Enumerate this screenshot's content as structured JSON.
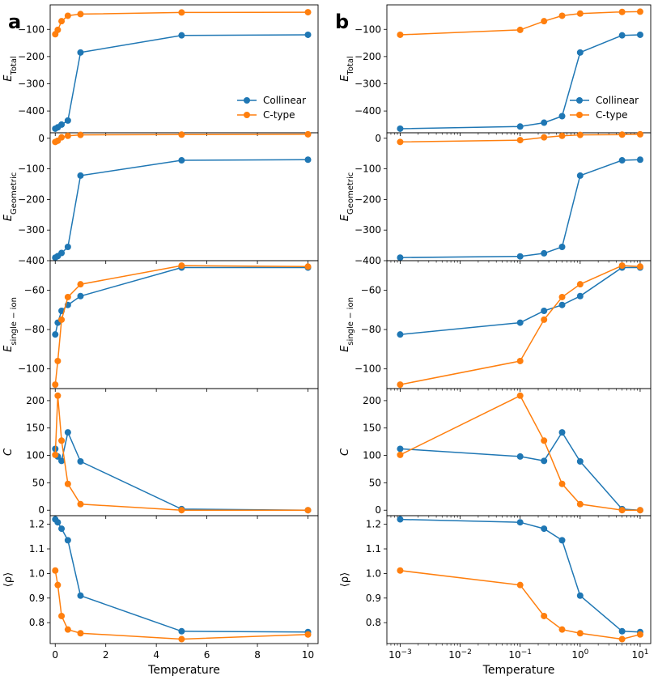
{
  "chart_data": [
    {
      "type": "line",
      "panel_label": "a",
      "xscale": "linear",
      "xlabel": "Temperature",
      "xticks": [
        0,
        2,
        4,
        6,
        8,
        10
      ],
      "xtick_labels": [
        "0",
        "2",
        "4",
        "6",
        "8",
        "10"
      ],
      "xlim": [
        -0.2,
        10.4
      ],
      "x": [
        0.001,
        0.1,
        0.25,
        0.5,
        1,
        5,
        10
      ],
      "series_names": [
        "Collinear",
        "C-type"
      ],
      "colors": [
        "#1f77b4",
        "#ff7f0e"
      ],
      "legend_position": "lower-right of first row",
      "rows": [
        {
          "ylabel": "E",
          "ylabel_sub": "Total",
          "ylim": [
            -480,
            -10
          ],
          "yticks": [
            -400,
            -300,
            -200,
            -100
          ],
          "ytick_labels": [
            "−400",
            "−300",
            "−200",
            "−100"
          ],
          "series": [
            {
              "name": "Collinear",
              "values": [
                -465,
                -460,
                -450,
                -435,
                -185,
                -122,
                -120
              ]
            },
            {
              "name": "C-type",
              "values": [
                -118,
                -102,
                -70,
                -50,
                -44,
                -38,
                -37
              ]
            }
          ]
        },
        {
          "ylabel": "E",
          "ylabel_sub": "Geometric",
          "ylim": [
            -400,
            18
          ],
          "yticks": [
            -400,
            -300,
            -200,
            -100,
            0
          ],
          "ytick_labels": [
            "−400",
            "−300",
            "−200",
            "−100",
            "0"
          ],
          "series": [
            {
              "name": "Collinear",
              "values": [
                -390,
                -385,
                -375,
                -355,
                -122,
                -72,
                -70
              ]
            },
            {
              "name": "C-type",
              "values": [
                -12,
                -8,
                3,
                8,
                11,
                12,
                13
              ]
            }
          ]
        },
        {
          "ylabel": "E",
          "ylabel_sub": "single − ion",
          "ylim": [
            -110,
            -45
          ],
          "yticks": [
            -100,
            -80,
            -60
          ],
          "ytick_labels": [
            "−100",
            "−80",
            "−60"
          ],
          "series": [
            {
              "name": "Collinear",
              "values": [
                -82.5,
                -76.5,
                -70.5,
                -67.5,
                -63,
                -48.5,
                -48.5
              ]
            },
            {
              "name": "C-type",
              "values": [
                -108,
                -96,
                -75,
                -63.5,
                -57,
                -47.5,
                -48
              ]
            }
          ]
        },
        {
          "ylabel": "C",
          "ylabel_sub": "",
          "ylim": [
            -10,
            222
          ],
          "yticks": [
            0,
            50,
            100,
            150,
            200
          ],
          "ytick_labels": [
            "0",
            "50",
            "100",
            "150",
            "200"
          ],
          "series": [
            {
              "name": "Collinear",
              "values": [
                112,
                98,
                90,
                142,
                89,
                2,
                0
              ]
            },
            {
              "name": "C-type",
              "values": [
                101,
                209,
                127,
                48,
                11,
                0,
                0
              ]
            }
          ]
        },
        {
          "ylabel": "⟨ρ⟩",
          "ylabel_sub": "",
          "ylim": [
            0.715,
            1.235
          ],
          "yticks": [
            0.8,
            0.9,
            1.0,
            1.1,
            1.2
          ],
          "ytick_labels": [
            "0.8",
            "0.9",
            "1.0",
            "1.1",
            "1.2"
          ],
          "series": [
            {
              "name": "Collinear",
              "values": [
                1.22,
                1.208,
                1.182,
                1.135,
                0.91,
                0.765,
                0.762
              ]
            },
            {
              "name": "C-type",
              "values": [
                1.012,
                0.953,
                0.827,
                0.772,
                0.757,
                0.733,
                0.752
              ]
            }
          ]
        }
      ]
    },
    {
      "type": "line",
      "panel_label": "b",
      "xscale": "log",
      "xlabel": "Temperature",
      "xticks": [
        0.001,
        0.01,
        0.1,
        1,
        10
      ],
      "xtick_bases": [
        "10",
        "10",
        "10",
        "10",
        "10"
      ],
      "xtick_exps": [
        "−3",
        "−2",
        "−1",
        "0",
        "1"
      ],
      "xlim": [
        0.0006,
        15
      ],
      "x": [
        0.001,
        0.1,
        0.25,
        0.5,
        1,
        5,
        10
      ],
      "series_names": [
        "Collinear",
        "C-type"
      ],
      "colors": [
        "#1f77b4",
        "#ff7f0e"
      ],
      "legend_position": "lower-right of first row",
      "rows": [
        {
          "ylabel": "E",
          "ylabel_sub": "Total",
          "ylim": [
            -480,
            -10
          ],
          "yticks": [
            -400,
            -300,
            -200,
            -100
          ],
          "ytick_labels": [
            "−400",
            "−300",
            "−200",
            "−100"
          ],
          "series": [
            {
              "name": "Collinear",
              "values": [
                -465,
                -457,
                -443,
                -419,
                -185,
                -122,
                -120
              ]
            },
            {
              "name": "C-type",
              "values": [
                -120,
                -102,
                -70,
                -50,
                -42,
                -36,
                -35
              ]
            }
          ]
        },
        {
          "ylabel": "E",
          "ylabel_sub": "Geometric",
          "ylim": [
            -400,
            18
          ],
          "yticks": [
            -400,
            -300,
            -200,
            -100,
            0
          ],
          "ytick_labels": [
            "−400",
            "−300",
            "−200",
            "−100",
            "0"
          ],
          "series": [
            {
              "name": "Collinear",
              "values": [
                -390,
                -386,
                -376,
                -355,
                -122,
                -72,
                -70
              ]
            },
            {
              "name": "C-type",
              "values": [
                -12,
                -6,
                3,
                8,
                11,
                12,
                13
              ]
            }
          ]
        },
        {
          "ylabel": "E",
          "ylabel_sub": "single − ion",
          "ylim": [
            -110,
            -45
          ],
          "yticks": [
            -100,
            -80,
            -60
          ],
          "ytick_labels": [
            "−100",
            "−80",
            "−60"
          ],
          "series": [
            {
              "name": "Collinear",
              "values": [
                -82.5,
                -76.5,
                -70.5,
                -67.5,
                -63,
                -48.5,
                -48.5
              ]
            },
            {
              "name": "C-type",
              "values": [
                -108,
                -96,
                -75,
                -63.5,
                -57,
                -47.5,
                -48
              ]
            }
          ]
        },
        {
          "ylabel": "C",
          "ylabel_sub": "",
          "ylim": [
            -10,
            222
          ],
          "yticks": [
            0,
            50,
            100,
            150,
            200
          ],
          "ytick_labels": [
            "0",
            "50",
            "100",
            "150",
            "200"
          ],
          "series": [
            {
              "name": "Collinear",
              "values": [
                112,
                98,
                90,
                142,
                89,
                2,
                0
              ]
            },
            {
              "name": "C-type",
              "values": [
                101,
                209,
                127,
                48,
                11,
                0,
                0
              ]
            }
          ]
        },
        {
          "ylabel": "⟨ρ⟩",
          "ylabel_sub": "",
          "ylim": [
            0.715,
            1.235
          ],
          "yticks": [
            0.8,
            0.9,
            1.0,
            1.1,
            1.2
          ],
          "ytick_labels": [
            "0.8",
            "0.9",
            "1.0",
            "1.1",
            "1.2"
          ],
          "series": [
            {
              "name": "Collinear",
              "values": [
                1.22,
                1.208,
                1.182,
                1.135,
                0.91,
                0.765,
                0.762
              ]
            },
            {
              "name": "C-type",
              "values": [
                1.012,
                0.953,
                0.827,
                0.772,
                0.757,
                0.733,
                0.752
              ]
            }
          ]
        }
      ]
    }
  ]
}
